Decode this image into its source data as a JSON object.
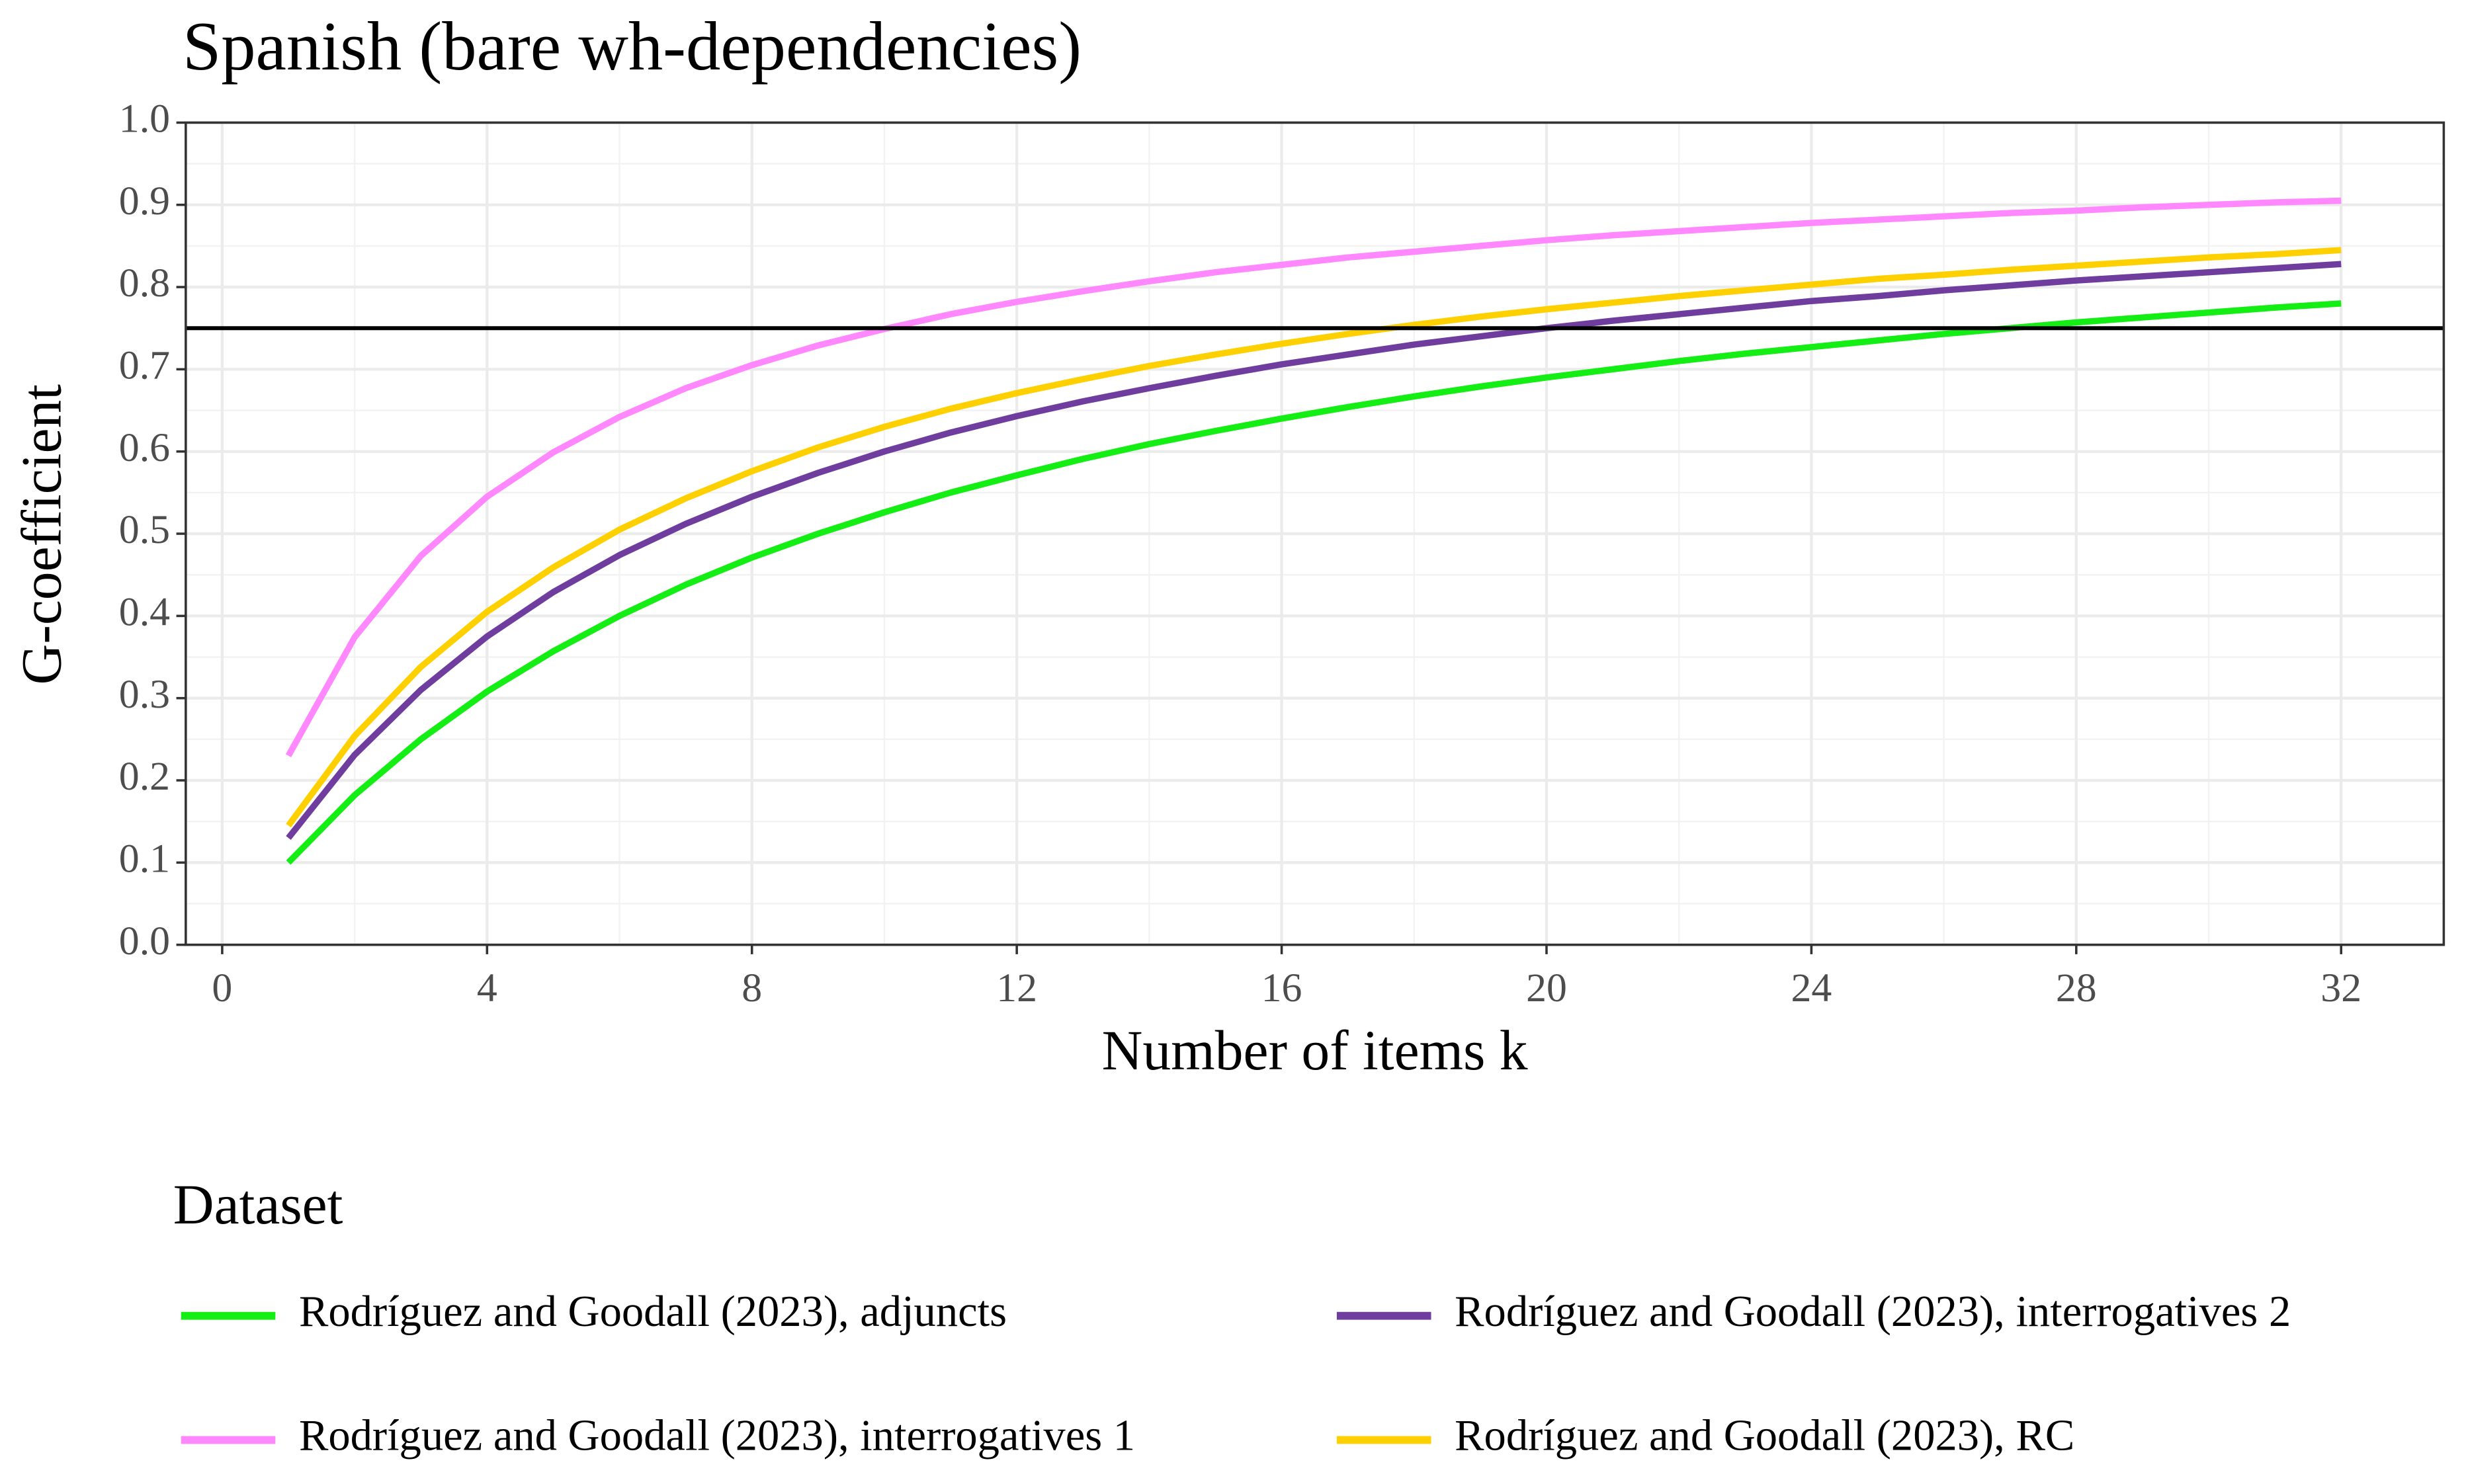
{
  "chart_data": {
    "type": "line",
    "title": "Spanish (bare wh-dependencies)",
    "x_label": "Number of items k",
    "y_label": "G-coefficient",
    "legend_title": "Dataset",
    "x": [
      1,
      2,
      3,
      4,
      5,
      6,
      7,
      8,
      9,
      10,
      11,
      12,
      13,
      14,
      15,
      16,
      17,
      18,
      19,
      20,
      21,
      22,
      23,
      24,
      25,
      26,
      27,
      28,
      29,
      30,
      31,
      32
    ],
    "series": [
      {
        "name": "Rodríguez and Goodall (2023), adjuncts",
        "color": "#14ee14",
        "values": [
          0.1,
          0.182,
          0.25,
          0.308,
          0.357,
          0.4,
          0.438,
          0.471,
          0.5,
          0.526,
          0.55,
          0.571,
          0.591,
          0.609,
          0.625,
          0.64,
          0.654,
          0.667,
          0.679,
          0.69,
          0.7,
          0.71,
          0.719,
          0.727,
          0.735,
          0.743,
          0.75,
          0.757,
          0.763,
          0.769,
          0.775,
          0.78
        ]
      },
      {
        "name": "Rodríguez and Goodall (2023), interrogatives 1",
        "color": "#ff88ff",
        "values": [
          0.23,
          0.374,
          0.473,
          0.545,
          0.599,
          0.642,
          0.677,
          0.705,
          0.729,
          0.749,
          0.767,
          0.782,
          0.795,
          0.807,
          0.818,
          0.827,
          0.836,
          0.843,
          0.85,
          0.857,
          0.863,
          0.868,
          0.873,
          0.878,
          0.882,
          0.886,
          0.89,
          0.893,
          0.897,
          0.9,
          0.903,
          0.905
        ]
      },
      {
        "name": "Rodríguez and Goodall (2023), interrogatives 2",
        "color": "#6f3d9e",
        "values": [
          0.13,
          0.231,
          0.31,
          0.375,
          0.429,
          0.474,
          0.512,
          0.545,
          0.574,
          0.6,
          0.623,
          0.643,
          0.661,
          0.677,
          0.692,
          0.706,
          0.718,
          0.73,
          0.74,
          0.75,
          0.759,
          0.767,
          0.775,
          0.783,
          0.789,
          0.796,
          0.802,
          0.808,
          0.813,
          0.818,
          0.823,
          0.828
        ]
      },
      {
        "name": "Rodríguez and Goodall (2023), RC",
        "color": "#ffd000",
        "values": [
          0.145,
          0.254,
          0.338,
          0.405,
          0.459,
          0.505,
          0.543,
          0.576,
          0.605,
          0.63,
          0.652,
          0.671,
          0.688,
          0.704,
          0.718,
          0.731,
          0.743,
          0.754,
          0.764,
          0.773,
          0.781,
          0.789,
          0.796,
          0.803,
          0.81,
          0.815,
          0.821,
          0.826,
          0.831,
          0.836,
          0.84,
          0.845
        ]
      }
    ],
    "hline": 0.75,
    "xlim": [
      -0.55,
      33.55
    ],
    "ylim": [
      0,
      1
    ],
    "xticks": [
      0,
      4,
      8,
      12,
      16,
      20,
      24,
      28,
      32
    ],
    "yticks": [
      {
        "value": 0,
        "label": "0.0"
      },
      0.1,
      0.2,
      0.3,
      0.4,
      0.5,
      0.6,
      0.7,
      0.8,
      0.9,
      {
        "value": 1,
        "label": "1.0"
      }
    ],
    "grid": true,
    "legend_position": "bottom"
  }
}
